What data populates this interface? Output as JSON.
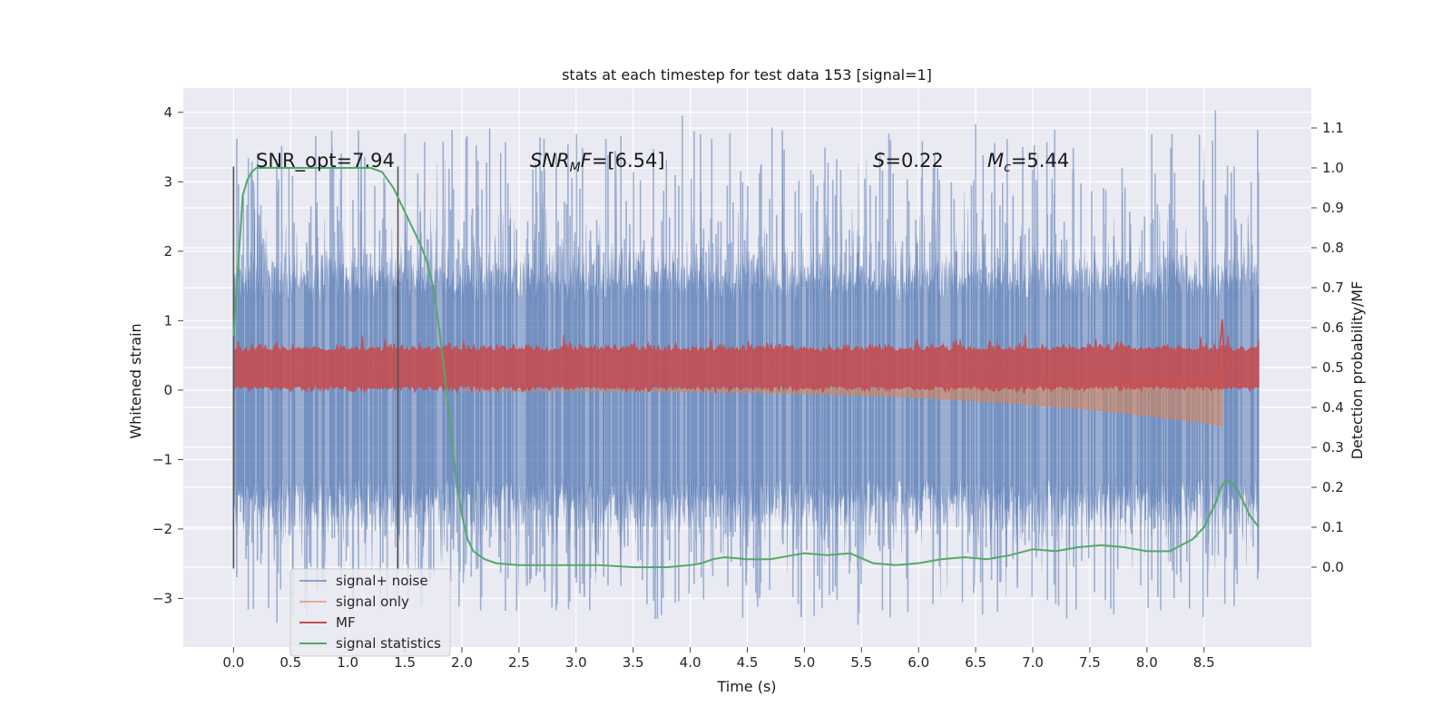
{
  "chart_data": {
    "type": "line",
    "title": "stats at each timestep for test data 153 [signal=1]",
    "xlabel": "Time (s)",
    "ylabel": "Whitened strain",
    "y2label": "Detection probability/MF",
    "xlim": [
      -0.44,
      9.44
    ],
    "ylim": [
      -3.7,
      4.35
    ],
    "y2lim": [
      -0.2,
      1.2
    ],
    "xticks": [
      "0.0",
      "0.5",
      "1.0",
      "1.5",
      "2.0",
      "2.5",
      "3.0",
      "3.5",
      "4.0",
      "4.5",
      "5.0",
      "5.5",
      "6.0",
      "6.5",
      "7.0",
      "7.5",
      "8.0",
      "8.5"
    ],
    "xtick_values": [
      0,
      0.5,
      1,
      1.5,
      2,
      2.5,
      3,
      3.5,
      4,
      4.5,
      5,
      5.5,
      6,
      6.5,
      7,
      7.5,
      8,
      8.5
    ],
    "yticks": [
      "−3",
      "−2",
      "−1",
      "0",
      "1",
      "2",
      "3",
      "4"
    ],
    "ytick_values": [
      -3,
      -2,
      -1,
      0,
      1,
      2,
      3,
      4
    ],
    "y2ticks": [
      "0.0",
      "0.1",
      "0.2",
      "0.3",
      "0.4",
      "0.5",
      "0.6",
      "0.7",
      "0.8",
      "0.9",
      "1.0",
      "1.1"
    ],
    "y2tick_values": [
      0,
      0.1,
      0.2,
      0.3,
      0.4,
      0.5,
      0.6,
      0.7,
      0.8,
      0.9,
      1.0,
      1.1
    ],
    "annotations": {
      "snr_opt": "SNR_opt=7.94",
      "snr_mf_main": "SNR",
      "snr_mf_sub": "M",
      "snr_mf_tail": "F",
      "snr_mf_value": "=[6.54]",
      "s_symbol": "S",
      "s_value": "=0.22",
      "mc_symbol": "M",
      "mc_sub": "c",
      "mc_value": "=5.44"
    },
    "vertical_markers": [
      0.0,
      1.44
    ],
    "marker_yrange": [
      -2.57,
      3.22
    ],
    "legend": {
      "placement": "lower-left",
      "entries": [
        {
          "label": "signal+ noise",
          "color": "#4c72b0"
        },
        {
          "label": "signal only",
          "color": "#dd8452"
        },
        {
          "label": "MF",
          "color": "#c44e52"
        },
        {
          "label": "signal statistics",
          "color": "#55a868"
        }
      ]
    },
    "series": [
      {
        "name": "signal statistics",
        "axis": "y2",
        "color": "#55a868",
        "x": [
          0.0,
          0.04,
          0.08,
          0.12,
          0.16,
          0.2,
          0.3,
          0.5,
          0.8,
          1.0,
          1.1,
          1.2,
          1.3,
          1.35,
          1.4,
          1.45,
          1.5,
          1.55,
          1.6,
          1.65,
          1.7,
          1.75,
          1.8,
          1.85,
          1.9,
          1.95,
          2.0,
          2.05,
          2.1,
          2.2,
          2.3,
          2.5,
          2.8,
          3.2,
          3.5,
          3.8,
          4.0,
          4.1,
          4.2,
          4.3,
          4.5,
          4.7,
          4.9,
          5.0,
          5.2,
          5.4,
          5.6,
          5.8,
          6.0,
          6.2,
          6.4,
          6.6,
          6.8,
          7.0,
          7.2,
          7.4,
          7.6,
          7.8,
          8.0,
          8.2,
          8.4,
          8.5,
          8.6,
          8.65,
          8.7,
          8.75,
          8.8,
          8.9,
          8.98
        ],
        "y": [
          0.58,
          0.75,
          0.93,
          0.97,
          0.99,
          1.0,
          1.0,
          1.0,
          1.0,
          1.0,
          1.0,
          1.0,
          0.99,
          0.97,
          0.95,
          0.92,
          0.89,
          0.86,
          0.83,
          0.8,
          0.76,
          0.7,
          0.6,
          0.48,
          0.35,
          0.22,
          0.13,
          0.07,
          0.04,
          0.02,
          0.01,
          0.005,
          0.005,
          0.005,
          0.0,
          0.0,
          0.005,
          0.01,
          0.02,
          0.025,
          0.02,
          0.02,
          0.03,
          0.035,
          0.03,
          0.035,
          0.01,
          0.005,
          0.01,
          0.02,
          0.025,
          0.02,
          0.03,
          0.045,
          0.04,
          0.05,
          0.055,
          0.05,
          0.04,
          0.04,
          0.07,
          0.1,
          0.16,
          0.2,
          0.22,
          0.21,
          0.19,
          0.13,
          0.1
        ]
      },
      {
        "name": "MF",
        "axis": "y2",
        "color": "#c44e52",
        "description_values": {
          "baseline_min": 0.45,
          "baseline_max": 0.55,
          "peak_x": 8.66,
          "peak_y": 0.62
        }
      },
      {
        "name": "signal only",
        "axis": "y",
        "color": "#dd8452",
        "description_values": {
          "start_amplitude": 0.02,
          "end_amplitude": 0.85,
          "merger_x": 8.66
        }
      },
      {
        "name": "signal+ noise",
        "axis": "y",
        "color": "#4c72b0",
        "description_values": {
          "dense_band": 1.5,
          "max_peak": 4.05,
          "min_peak": -3.38
        }
      }
    ]
  }
}
